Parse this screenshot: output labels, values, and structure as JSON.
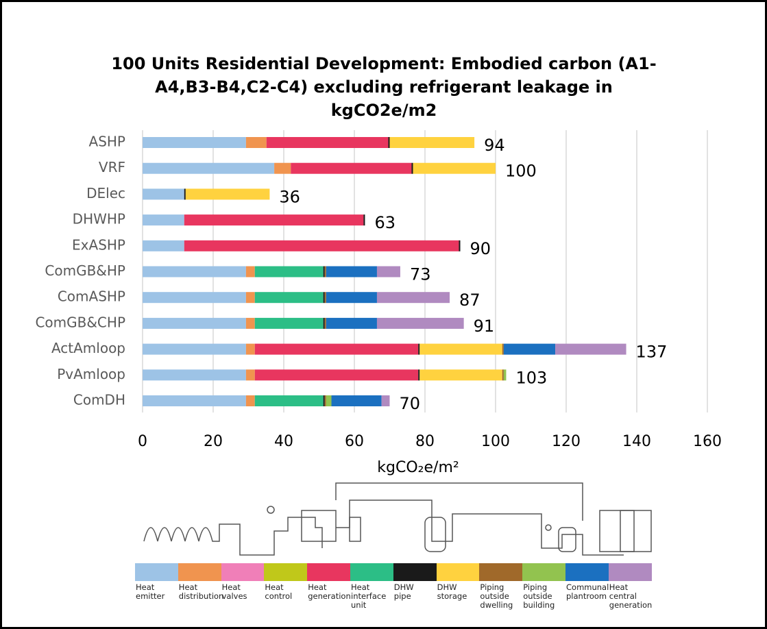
{
  "chart_data": {
    "type": "stacked-bar-horizontal",
    "title": "100 Units Residential Development: Embodied carbon (A1-A4,B3-B4,C2-C4) excluding refrigerant leakage in kgCO2e/m2",
    "x_label": "kgCO₂e/m²",
    "categories": [
      "ASHP",
      "VRF",
      "DElec",
      "DHWHP",
      "ExASHP",
      "ComGB&HP",
      "ComASHP",
      "ComGB&CHP",
      "ActAmloop",
      "PvAmloop",
      "ComDH"
    ],
    "totals": [
      94,
      100,
      36,
      63,
      90,
      73,
      87,
      91,
      137,
      103,
      70
    ],
    "xlim": [
      0,
      160
    ],
    "xticks": [
      0,
      20,
      40,
      60,
      80,
      100,
      120,
      140,
      160
    ],
    "grid": true,
    "series": [
      {
        "name": "Heat emitter",
        "color": "#9dc3e6",
        "values": [
          29.3,
          37.3,
          11.8,
          11.8,
          11.8,
          29.3,
          29.3,
          29.3,
          29.3,
          29.3,
          29.3
        ]
      },
      {
        "name": "Heat distribution",
        "color": "#f0944f",
        "values": [
          5.8,
          4.7,
          null,
          null,
          null,
          2.5,
          2.5,
          2.5,
          2.5,
          2.5,
          2.5
        ]
      },
      {
        "name": "Heat valves",
        "color": "#f07fb8",
        "values": [
          null,
          null,
          null,
          null,
          null,
          null,
          null,
          null,
          null,
          null,
          null
        ]
      },
      {
        "name": "Heat control",
        "color": "#c0c81a",
        "values": [
          null,
          null,
          null,
          null,
          null,
          null,
          null,
          null,
          null,
          null,
          null
        ]
      },
      {
        "name": "Heat generation",
        "color": "#e8365f",
        "values": [
          34.5,
          34.2,
          null,
          50.8,
          77.8,
          null,
          null,
          null,
          46.3,
          46.3,
          null
        ]
      },
      {
        "name": "Heat interface unit",
        "color": "#2cbe86",
        "values": [
          null,
          null,
          null,
          null,
          null,
          19.4,
          19.4,
          19.4,
          null,
          null,
          19.4
        ]
      },
      {
        "name": "DHW pipe",
        "color": "#1a1a1a",
        "values": [
          0.4,
          0.4,
          0.4,
          0.4,
          0.4,
          0.4,
          0.4,
          0.4,
          0.4,
          0.4,
          0.4
        ]
      },
      {
        "name": "DHW storage",
        "color": "#ffd23f",
        "values": [
          24,
          23.4,
          23.8,
          null,
          null,
          null,
          null,
          null,
          23.4,
          23.4,
          null
        ]
      },
      {
        "name": "Piping outside dwelling",
        "color": "#a0692a",
        "values": [
          null,
          null,
          null,
          null,
          null,
          0.4,
          0.4,
          0.4,
          0.4,
          0.4,
          0.4
        ]
      },
      {
        "name": "Piping outside building",
        "color": "#92c34f",
        "values": [
          null,
          null,
          null,
          null,
          null,
          null,
          null,
          null,
          null,
          0.7,
          1.5
        ]
      },
      {
        "name": "Communal plantroom",
        "color": "#1b70c0",
        "values": [
          null,
          null,
          null,
          null,
          null,
          14.4,
          14.4,
          14.4,
          14.6,
          null,
          14.2
        ]
      },
      {
        "name": "Heat central generation",
        "color": "#b08ac0",
        "values": [
          null,
          null,
          null,
          null,
          null,
          6.6,
          20.6,
          24.6,
          20.1,
          null,
          2.3
        ]
      }
    ]
  }
}
